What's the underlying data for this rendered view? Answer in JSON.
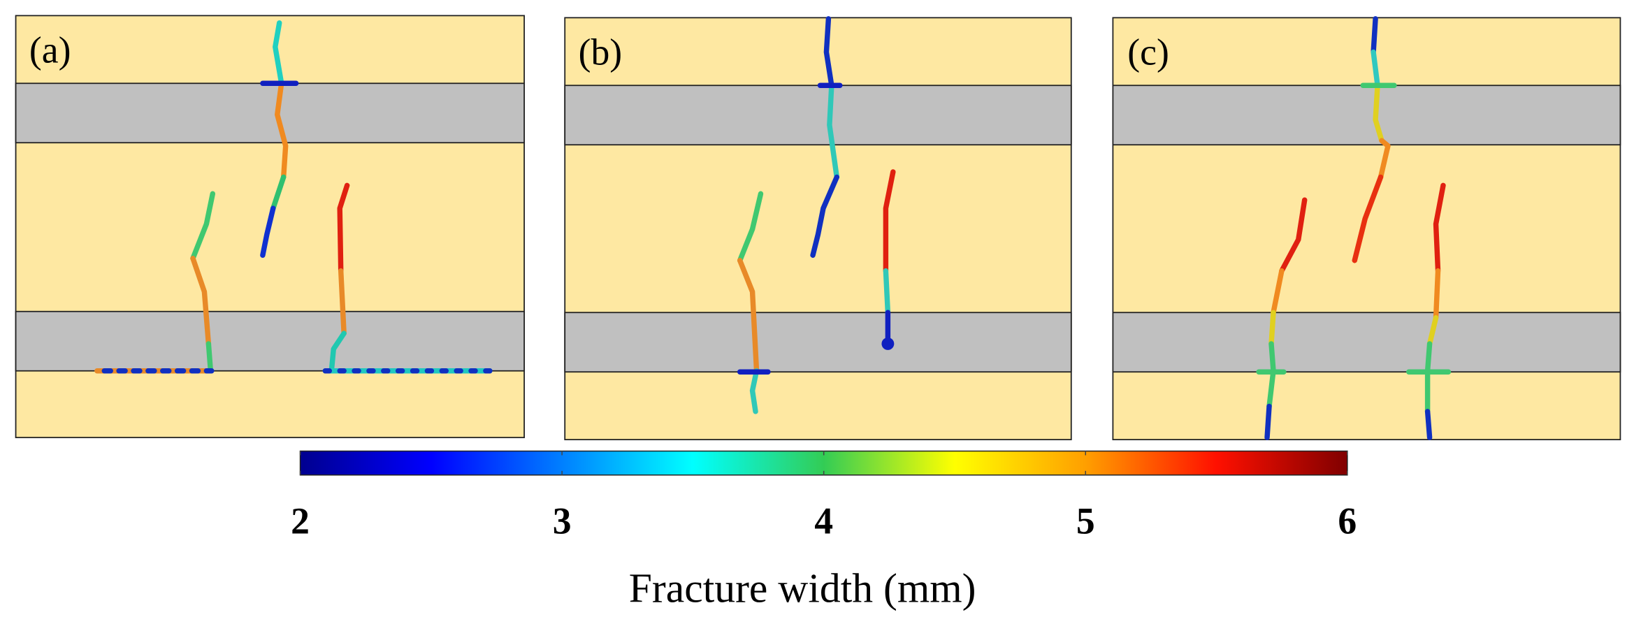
{
  "panels": [
    {
      "label": "(a)"
    },
    {
      "label": "(b)"
    },
    {
      "label": "(c)"
    }
  ],
  "colorbar": {
    "label": "Fracture width (mm)",
    "lim": [
      2,
      6
    ],
    "ticks": [
      2,
      3,
      4,
      5,
      6
    ]
  }
}
